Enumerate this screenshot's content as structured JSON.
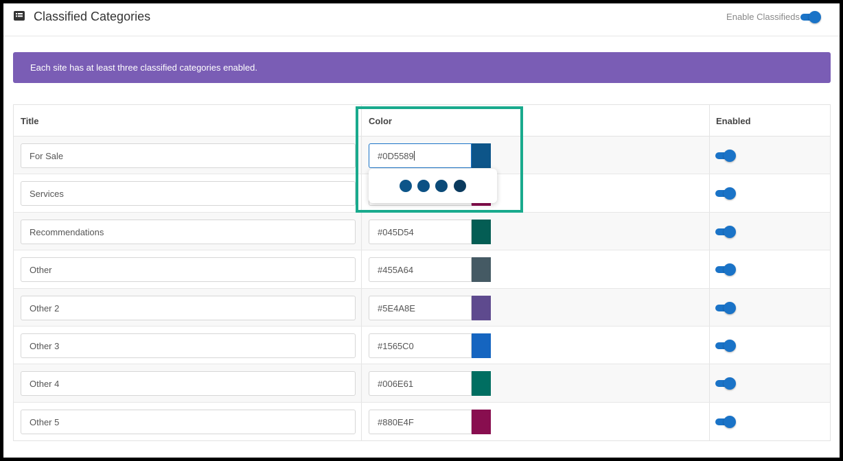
{
  "header": {
    "title": "Classified Categories",
    "enable_label": "Enable Classifieds",
    "enabled": true
  },
  "banner": {
    "text": "Each site has at least three classified categories enabled."
  },
  "table": {
    "columns": [
      "Title",
      "Color",
      "Enabled"
    ],
    "rows": [
      {
        "title": "For Sale",
        "color": "#0D5589",
        "enabled": true
      },
      {
        "title": "Services",
        "color": "#880E4F",
        "enabled": true
      },
      {
        "title": "Recommendations",
        "color": "#045D54",
        "enabled": true
      },
      {
        "title": "Other",
        "color": "#455A64",
        "enabled": true
      },
      {
        "title": "Other 2",
        "color": "#5E4A8E",
        "enabled": true
      },
      {
        "title": "Other 3",
        "color": "#1565C0",
        "enabled": true
      },
      {
        "title": "Other 4",
        "color": "#006E61",
        "enabled": true
      },
      {
        "title": "Other 5",
        "color": "#880E4F",
        "enabled": true
      }
    ]
  },
  "picker": {
    "shades": [
      "#0D5589",
      "#0C5184",
      "#0B4A78",
      "#0A3A5E"
    ]
  },
  "colors": {
    "accent": "#1a73c7",
    "banner": "#7a5db5",
    "highlight": "#19aa8d"
  }
}
